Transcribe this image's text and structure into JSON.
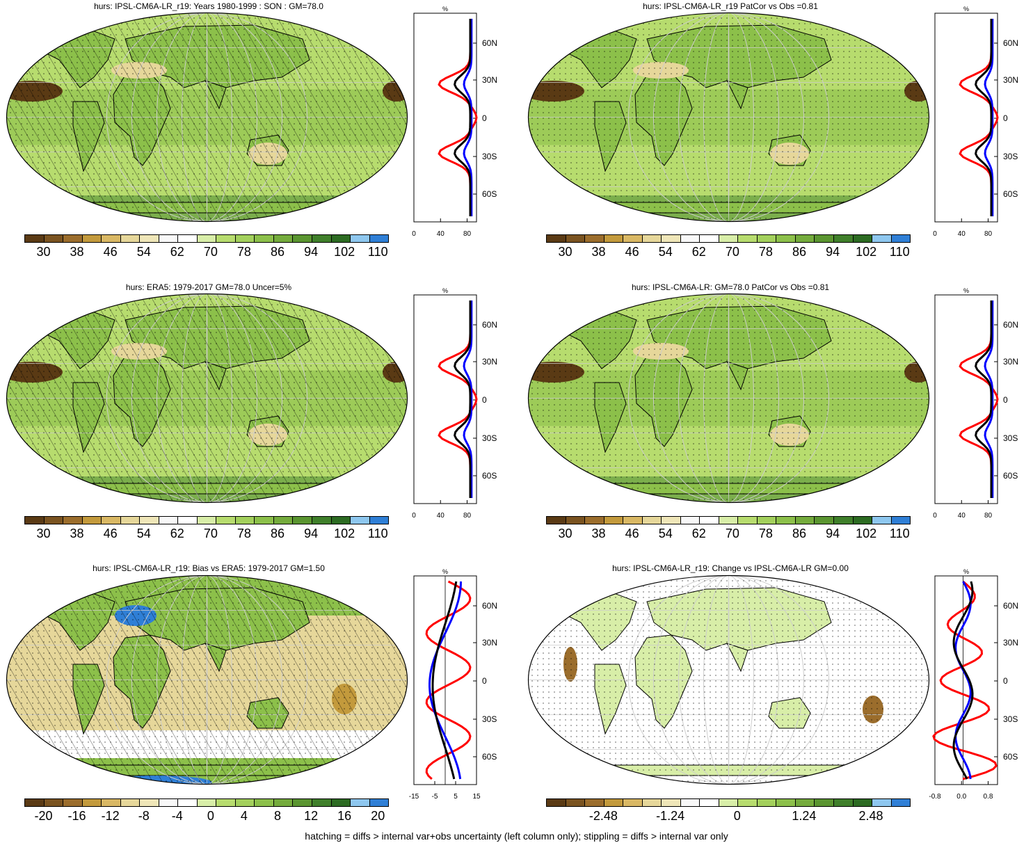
{
  "footnote": "hatching = diffs > internal var+obs uncertainty (left column only); stippling = diffs > internal var only",
  "colors": {
    "brown_dark": "#5a3a14",
    "tan": "#e6d79a",
    "white": "#ffffff",
    "green_light": "#b7dc6e",
    "green": "#8cc04a",
    "green_dark": "#3f7f2a",
    "blue": "#2f7fd6",
    "profile_red": "#ff0000",
    "profile_blue": "#0000ff",
    "profile_black": "#000000"
  },
  "palette": [
    "#5a3a14",
    "#7a5320",
    "#9b6d2c",
    "#c39a3c",
    "#d9b864",
    "#e6d79a",
    "#efe6b8",
    "#f8f8f8",
    "#ffffff",
    "#d8eea8",
    "#b7dc6e",
    "#a3d05c",
    "#8cc04a",
    "#74ab3c",
    "#5a9530",
    "#3f7f2a",
    "#2c6b22",
    "#8ec7ef",
    "#2f7fd6"
  ],
  "panels": [
    {
      "title": "hurs: IPSL-CM6A-LR_r19: Years 1980-1999 : SON : GM=78.0",
      "colorbar_labels": [
        "30",
        "38",
        "46",
        "54",
        "62",
        "70",
        "78",
        "86",
        "94",
        "102",
        "110"
      ],
      "profile_x_ticks": [
        "0",
        "40",
        "80"
      ],
      "profile_unit": "%",
      "lat_labels": [
        "60N",
        "30N",
        "0",
        "30S",
        "60S"
      ],
      "hatching": true,
      "stippling": true
    },
    {
      "title": "hurs: IPSL-CM6A-LR_r19 PatCor vs Obs =0.81",
      "colorbar_labels": [
        "30",
        "38",
        "46",
        "54",
        "62",
        "70",
        "78",
        "86",
        "94",
        "102",
        "110"
      ],
      "profile_x_ticks": [
        "0",
        "40",
        "80"
      ],
      "profile_unit": "%",
      "lat_labels": [
        "60N",
        "30N",
        "0",
        "30S",
        "60S"
      ],
      "hatching": false,
      "stippling": true
    },
    {
      "title": "hurs: ERA5: 1979-2017 GM=78.0 Uncer=5%",
      "colorbar_labels": [
        "30",
        "38",
        "46",
        "54",
        "62",
        "70",
        "78",
        "86",
        "94",
        "102",
        "110"
      ],
      "profile_x_ticks": [
        "0",
        "40",
        "80"
      ],
      "profile_unit": "%",
      "lat_labels": [
        "60N",
        "30N",
        "0",
        "30S",
        "60S"
      ],
      "hatching": true,
      "stippling": true
    },
    {
      "title": "hurs: IPSL-CM6A-LR: GM=78.0 PatCor vs Obs =0.81",
      "colorbar_labels": [
        "30",
        "38",
        "46",
        "54",
        "62",
        "70",
        "78",
        "86",
        "94",
        "102",
        "110"
      ],
      "profile_x_ticks": [
        "0",
        "40",
        "80"
      ],
      "profile_unit": "%",
      "lat_labels": [
        "60N",
        "30N",
        "0",
        "30S",
        "60S"
      ],
      "hatching": false,
      "stippling": true
    },
    {
      "title": "hurs: IPSL-CM6A-LR_r19: Bias vs ERA5: 1979-2017  GM=1.50",
      "colorbar_labels": [
        "-20",
        "-16",
        "-12",
        "-8",
        "-4",
        "0",
        "4",
        "8",
        "12",
        "16",
        "20"
      ],
      "profile_x_ticks": [
        "-15",
        "-5",
        "5",
        "15"
      ],
      "profile_unit": "%",
      "lat_labels": [
        "60N",
        "30N",
        "0",
        "30S",
        "60S"
      ],
      "hatching": true,
      "stippling": true
    },
    {
      "title": "hurs: IPSL-CM6A-LR_r19: Change vs IPSL-CM6A-LR GM=0.00",
      "colorbar_labels": [
        "-2.48",
        "-1.24",
        "0",
        "1.24",
        "2.48"
      ],
      "profile_x_ticks": [
        "-0.8",
        "0.0",
        "0.8"
      ],
      "profile_unit": "%",
      "lat_labels": [
        "60N",
        "30N",
        "0",
        "30S",
        "60S"
      ],
      "hatching": false,
      "stippling": true
    }
  ]
}
